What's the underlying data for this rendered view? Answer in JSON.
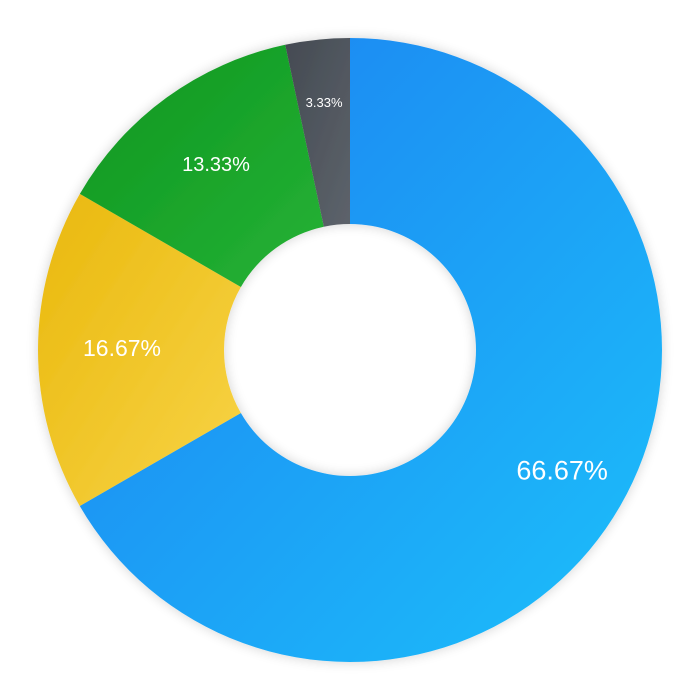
{
  "chart_data": {
    "type": "pie",
    "variant": "donut",
    "categories": [
      "",
      "",
      "",
      ""
    ],
    "values": [
      66.67,
      16.67,
      13.33,
      3.33
    ],
    "labels": [
      "66.67%",
      "16.67%",
      "13.33%",
      "3.33%"
    ],
    "colors": [
      {
        "from": "#1e7ff0",
        "to": "#1dc0fb"
      },
      {
        "from": "#e9b80c",
        "to": "#f8d447"
      },
      {
        "from": "#0d9620",
        "to": "#26b235"
      },
      {
        "from": "#444a52",
        "to": "#5d636b"
      }
    ],
    "legend": "none",
    "title": ""
  }
}
